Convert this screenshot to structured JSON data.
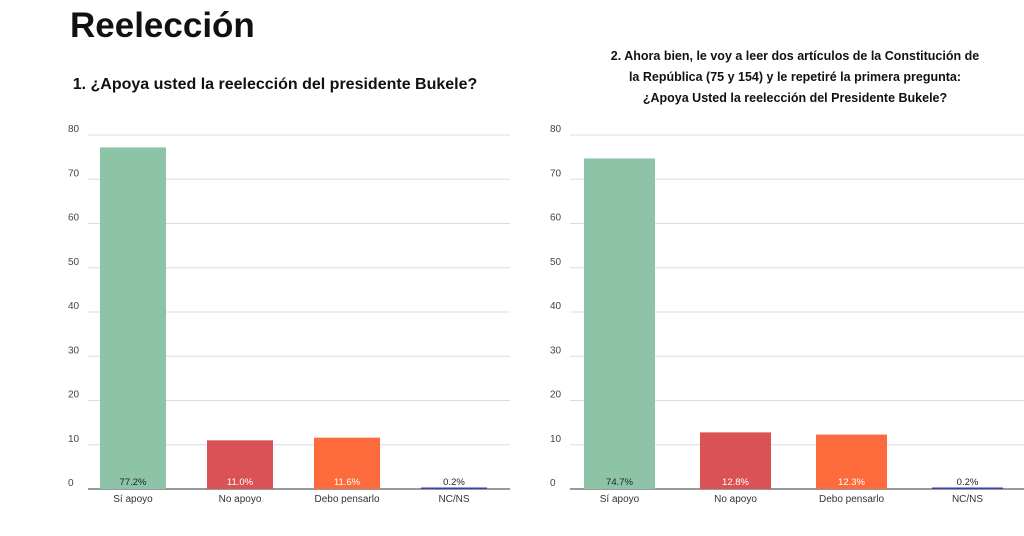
{
  "page": {
    "title": "Reelección"
  },
  "chart_data": [
    {
      "type": "bar",
      "title": "1. ¿Apoya usted la reelección del presidente Bukele?",
      "categories": [
        "Sí apoyo",
        "No apoyo",
        "Debo pensarlo",
        "NC/NS"
      ],
      "values": [
        77.2,
        11.0,
        11.6,
        0.2
      ],
      "data_labels": [
        "77.2%",
        "11.0%",
        "11.6%",
        "0.2%"
      ],
      "colors": [
        "#8dc4a7",
        "#db5256",
        "#fd6b3d",
        "#3b3dbd"
      ],
      "label_colors": [
        "#222222",
        "#ffffff",
        "#ffffff",
        "#222222"
      ],
      "ylim": [
        0,
        80
      ],
      "yticks": [
        0,
        10,
        20,
        30,
        40,
        50,
        60,
        70,
        80
      ],
      "grid": true,
      "xlabel": "",
      "ylabel": ""
    },
    {
      "type": "bar",
      "title": "2. Ahora bien, le voy a leer dos artículos de la Constitución de la República (75 y 154) y le repetiré la primera pregunta: ¿Apoya Usted la reelección del Presidente Bukele?",
      "title_lines": [
        "2. Ahora bien, le voy a leer dos artículos de la Constitución de",
        "la República (75 y 154) y le repetiré la primera pregunta:",
        "¿Apoya Usted la reelección del Presidente Bukele?"
      ],
      "categories": [
        "Sí apoyo",
        "No apoyo",
        "Debo pensarlo",
        "NC/NS"
      ],
      "values": [
        74.7,
        12.8,
        12.3,
        0.2
      ],
      "data_labels": [
        "74.7%",
        "12.8%",
        "12.3%",
        "0.2%"
      ],
      "colors": [
        "#8dc4a7",
        "#db5256",
        "#fd6b3d",
        "#3b3dbd"
      ],
      "label_colors": [
        "#222222",
        "#ffffff",
        "#ffffff",
        "#222222"
      ],
      "ylim": [
        0,
        80
      ],
      "yticks": [
        0,
        10,
        20,
        30,
        40,
        50,
        60,
        70,
        80
      ],
      "grid": true,
      "xlabel": "",
      "ylabel": ""
    }
  ]
}
